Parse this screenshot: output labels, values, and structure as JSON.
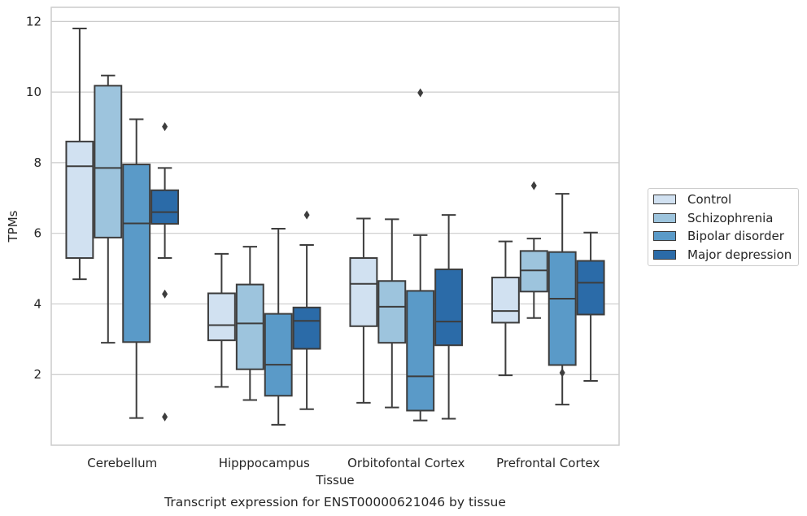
{
  "chart_data": {
    "type": "box",
    "title": "Transcript expression for ENST00000621046 by tissue",
    "xlabel": "Tissue",
    "ylabel": "TPMs",
    "ylim": [
      0,
      12.4
    ],
    "yticks": [
      2,
      4,
      6,
      8,
      10,
      12
    ],
    "grid": "horizontal",
    "legend_position": "right",
    "categories": [
      "Cerebellum",
      "Hipppocampus",
      "Orbitofontal Cortex",
      "Prefrontal Cortex"
    ],
    "series": [
      {
        "name": "Control",
        "color": "#d1e1f1",
        "boxes": [
          {
            "whislo": 4.7,
            "q1": 5.3,
            "med": 7.9,
            "q3": 8.6,
            "whishi": 11.8,
            "fliers": []
          },
          {
            "whislo": 1.65,
            "q1": 2.97,
            "med": 3.4,
            "q3": 4.3,
            "whishi": 5.42,
            "fliers": []
          },
          {
            "whislo": 1.2,
            "q1": 3.37,
            "med": 4.57,
            "q3": 5.3,
            "whishi": 6.42,
            "fliers": []
          },
          {
            "whislo": 1.98,
            "q1": 3.47,
            "med": 3.8,
            "q3": 4.75,
            "whishi": 5.77,
            "fliers": []
          }
        ]
      },
      {
        "name": "Schizophrenia",
        "color": "#9dc4dd",
        "boxes": [
          {
            "whislo": 2.9,
            "q1": 5.88,
            "med": 7.85,
            "q3": 10.18,
            "whishi": 10.47,
            "fliers": []
          },
          {
            "whislo": 1.28,
            "q1": 2.15,
            "med": 3.45,
            "q3": 4.55,
            "whishi": 5.62,
            "fliers": []
          },
          {
            "whislo": 1.07,
            "q1": 2.9,
            "med": 3.92,
            "q3": 4.65,
            "whishi": 6.4,
            "fliers": []
          },
          {
            "whislo": 3.6,
            "q1": 4.35,
            "med": 4.95,
            "q3": 5.5,
            "whishi": 5.85,
            "fliers": [
              7.35
            ]
          }
        ]
      },
      {
        "name": "Bipolar disorder",
        "color": "#5a9ac8",
        "boxes": [
          {
            "whislo": 0.77,
            "q1": 2.92,
            "med": 6.28,
            "q3": 7.95,
            "whishi": 9.23,
            "fliers": []
          },
          {
            "whislo": 0.58,
            "q1": 1.4,
            "med": 2.28,
            "q3": 3.72,
            "whishi": 6.13,
            "fliers": []
          },
          {
            "whislo": 0.7,
            "q1": 0.98,
            "med": 1.95,
            "q3": 4.37,
            "whishi": 5.95,
            "fliers": [
              9.98
            ]
          },
          {
            "whislo": 1.15,
            "q1": 2.27,
            "med": 4.15,
            "q3": 5.47,
            "whishi": 7.12,
            "fliers": [
              2.05
            ]
          }
        ]
      },
      {
        "name": "Major depression",
        "color": "#2b6ba8",
        "boxes": [
          {
            "whislo": 5.3,
            "q1": 6.27,
            "med": 6.6,
            "q3": 7.22,
            "whishi": 7.85,
            "fliers": [
              9.02,
              4.28,
              0.8
            ]
          },
          {
            "whislo": 1.02,
            "q1": 2.73,
            "med": 3.52,
            "q3": 3.9,
            "whishi": 5.67,
            "fliers": [
              6.52
            ]
          },
          {
            "whislo": 0.75,
            "q1": 2.83,
            "med": 3.5,
            "q3": 4.98,
            "whishi": 6.52,
            "fliers": []
          },
          {
            "whislo": 1.82,
            "q1": 3.7,
            "med": 4.6,
            "q3": 5.22,
            "whishi": 6.02,
            "fliers": []
          }
        ]
      }
    ]
  }
}
